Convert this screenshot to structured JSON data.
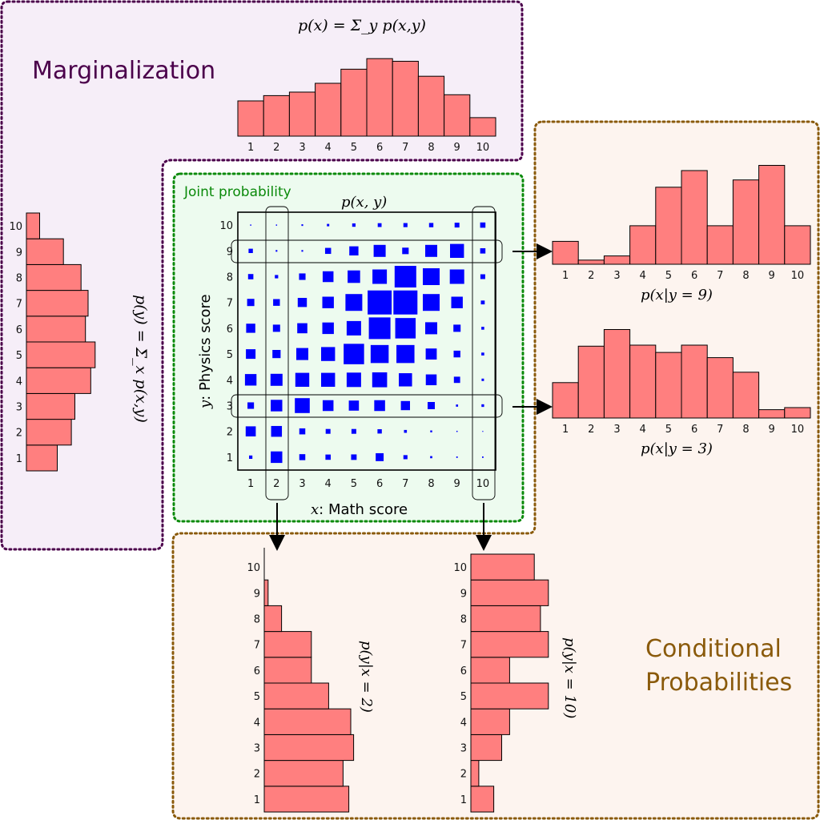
{
  "titles": {
    "marginalization": "Marginalization",
    "joint": "Joint probability",
    "conditional_line1": "Conditional",
    "conditional_line2": "Probabilities"
  },
  "formulas": {
    "px_marginal": "p(x) = Σ_y p(x,y)",
    "py_marginal": "p(y) = Σ_x p(x,y)",
    "joint": "p(x, y)",
    "cond_y9": "p(x|y = 9)",
    "cond_y3": "p(x|y = 3)",
    "cond_x2": "p(y|x = 2)",
    "cond_x10": "p(y|x = 10)"
  },
  "axes": {
    "xlabel_var": "x",
    "xlabel_text": ": Math score",
    "ylabel_var": "y",
    "ylabel_text": ": Physics score",
    "ticks": [
      "1",
      "2",
      "3",
      "4",
      "5",
      "6",
      "7",
      "8",
      "9",
      "10"
    ]
  },
  "colors": {
    "bar_fill": "#ff7f7f",
    "square_fill": "#0000ff",
    "marg_border": "#4b004b",
    "marg_bg": "#f6eef8",
    "joint_border": "#0b8a0b",
    "joint_bg": "#edfbef",
    "cond_border": "#8a5a0b",
    "cond_bg": "#fdf4ef",
    "marg_title": "#4b004b",
    "joint_title": "#0b8a0b",
    "cond_title": "#8a5a0b"
  },
  "chart_data": [
    {
      "type": "bar",
      "name": "marginal_px",
      "categories": [
        "1",
        "2",
        "3",
        "4",
        "5",
        "6",
        "7",
        "8",
        "9",
        "10"
      ],
      "values": [
        4.0,
        4.6,
        5.0,
        6.0,
        7.6,
        8.8,
        8.5,
        6.8,
        4.7,
        2.1
      ]
    },
    {
      "type": "bar",
      "name": "marginal_py",
      "categories": [
        "1",
        "2",
        "3",
        "4",
        "5",
        "6",
        "7",
        "8",
        "9",
        "10"
      ],
      "values": [
        3.5,
        5.1,
        5.5,
        7.3,
        7.8,
        6.7,
        7.0,
        6.2,
        4.2,
        1.5
      ]
    },
    {
      "type": "bar",
      "name": "cond_x_given_y9",
      "categories": [
        "1",
        "2",
        "3",
        "4",
        "5",
        "6",
        "7",
        "8",
        "9",
        "10"
      ],
      "values": [
        2.2,
        0.4,
        0.8,
        3.7,
        7.4,
        9.0,
        3.7,
        8.1,
        9.5,
        3.7
      ]
    },
    {
      "type": "bar",
      "name": "cond_x_given_y3",
      "categories": [
        "1",
        "2",
        "3",
        "4",
        "5",
        "6",
        "7",
        "8",
        "9",
        "10"
      ],
      "values": [
        3.4,
        6.9,
        8.5,
        7.0,
        6.3,
        7.0,
        5.8,
        4.4,
        0.8,
        1.0
      ]
    },
    {
      "type": "bar",
      "name": "cond_y_given_x2",
      "categories": [
        "1",
        "2",
        "3",
        "4",
        "5",
        "6",
        "7",
        "8",
        "9",
        "10"
      ],
      "values": [
        8.8,
        8.2,
        9.3,
        9.0,
        6.7,
        4.9,
        4.9,
        1.8,
        0.4,
        0.0
      ]
    },
    {
      "type": "bar",
      "name": "cond_y_given_x10",
      "categories": [
        "1",
        "2",
        "3",
        "4",
        "5",
        "6",
        "7",
        "8",
        "9",
        "10"
      ],
      "values": [
        2.6,
        0.9,
        3.5,
        4.4,
        8.8,
        4.4,
        8.8,
        7.9,
        8.8,
        7.2
      ]
    },
    {
      "type": "heatmap",
      "name": "joint_pxy",
      "x": [
        "1",
        "2",
        "3",
        "4",
        "5",
        "6",
        "7",
        "8",
        "9",
        "10"
      ],
      "y": [
        "1",
        "2",
        "3",
        "4",
        "5",
        "6",
        "7",
        "8",
        "9",
        "10"
      ],
      "values_by_row_y10_to_y1": [
        [
          0.05,
          0.05,
          0.07,
          0.1,
          0.14,
          0.16,
          0.17,
          0.18,
          0.2,
          0.22
        ],
        [
          0.18,
          0.07,
          0.07,
          0.25,
          0.38,
          0.5,
          0.27,
          0.5,
          0.58,
          0.22
        ],
        [
          0.22,
          0.14,
          0.27,
          0.45,
          0.52,
          0.6,
          0.9,
          0.7,
          0.6,
          0.2
        ],
        [
          0.3,
          0.28,
          0.38,
          0.48,
          0.7,
          1.0,
          1.0,
          0.7,
          0.48,
          0.16
        ],
        [
          0.38,
          0.3,
          0.42,
          0.48,
          0.6,
          0.9,
          0.85,
          0.5,
          0.3,
          0.12
        ],
        [
          0.4,
          0.34,
          0.5,
          0.58,
          0.85,
          0.75,
          0.75,
          0.46,
          0.28,
          0.12
        ],
        [
          0.48,
          0.5,
          0.58,
          0.58,
          0.6,
          0.62,
          0.55,
          0.45,
          0.26,
          0.1
        ],
        [
          0.27,
          0.48,
          0.62,
          0.45,
          0.42,
          0.45,
          0.38,
          0.3,
          0.09,
          0.11
        ],
        [
          0.42,
          0.45,
          0.25,
          0.2,
          0.2,
          0.18,
          0.12,
          0.08,
          0.05,
          0.03
        ],
        [
          0.14,
          0.48,
          0.25,
          0.22,
          0.23,
          0.33,
          0.17,
          0.09,
          0.06,
          0.06
        ]
      ]
    }
  ]
}
